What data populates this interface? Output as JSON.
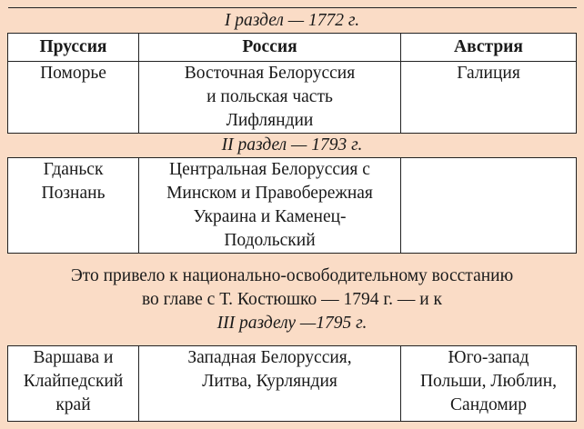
{
  "partition_1": {
    "title": "I раздел — 1772 г."
  },
  "headers": [
    "Пруссия",
    "Россия",
    "Австрия"
  ],
  "row_1": {
    "prussia": [
      "Поморье"
    ],
    "russia": [
      "Восточная Белоруссия",
      "и польская часть",
      "Лифляндии"
    ],
    "austria": [
      "Галиция"
    ]
  },
  "partition_2": {
    "title": "II раздел — 1793 г."
  },
  "row_2": {
    "prussia": [
      "Гданьск",
      "Познань"
    ],
    "russia": [
      "Центральная Белоруссия с",
      "Минском и Правобережная",
      "Украина и Каменец-",
      "Подольский"
    ],
    "austria": []
  },
  "note": {
    "lines": [
      "Это привело к национально-освободительному восстанию",
      "во главе с Т. Костюшко — 1794 г. — и к"
    ],
    "partition_3": "III разделу —1795 г."
  },
  "row_3": {
    "prussia": [
      "Варшава и",
      "Клайпедский",
      "край"
    ],
    "russia": [
      "Западная Белоруссия,",
      "Литва, Курляндия"
    ],
    "austria": [
      "Юго-запад",
      "Польши, Люблин,",
      "Сандомир"
    ]
  },
  "colors": {
    "background": "#fadcc6",
    "cell": "#ffffff",
    "border": "#222222"
  }
}
